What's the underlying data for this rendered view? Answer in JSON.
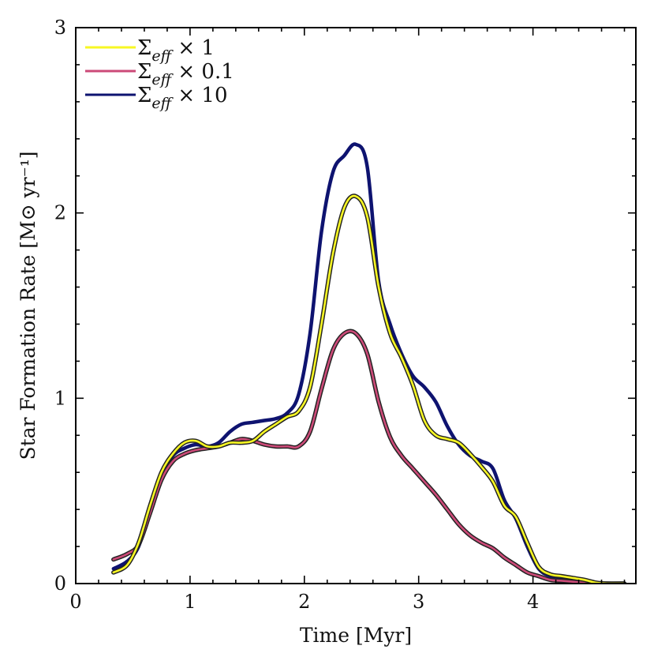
{
  "chart_data": {
    "type": "line",
    "title": "",
    "xlabel": "Time [Myr]",
    "ylabel": "Star Formation Rate [M⊙ yr⁻¹]",
    "xlim": [
      0,
      4.9
    ],
    "ylim": [
      0,
      3
    ],
    "xticks": [
      0,
      1,
      2,
      3,
      4
    ],
    "yticks": [
      0,
      1,
      2,
      3
    ],
    "xtick_labels": [
      "0",
      "1",
      "2",
      "3",
      "4"
    ],
    "ytick_labels": [
      "0",
      "1",
      "2",
      "3"
    ],
    "legend_position": "top-left",
    "series": [
      {
        "name": "Σeff × 1",
        "legend_label": "Σ",
        "legend_sub": "eff",
        "legend_suffix": " × 1",
        "color": "#f7f723",
        "x": [
          0.33,
          0.45,
          0.55,
          0.65,
          0.75,
          0.85,
          0.95,
          1.05,
          1.15,
          1.25,
          1.35,
          1.45,
          1.55,
          1.65,
          1.75,
          1.85,
          1.95,
          2.05,
          2.15,
          2.25,
          2.35,
          2.45,
          2.55,
          2.65,
          2.75,
          2.85,
          2.95,
          3.05,
          3.15,
          3.25,
          3.35,
          3.45,
          3.55,
          3.65,
          3.75,
          3.85,
          3.95,
          4.05,
          4.15,
          4.25,
          4.35,
          4.45,
          4.55,
          4.65,
          4.8
        ],
        "y": [
          0.06,
          0.1,
          0.22,
          0.42,
          0.6,
          0.7,
          0.76,
          0.77,
          0.74,
          0.74,
          0.76,
          0.76,
          0.77,
          0.82,
          0.86,
          0.9,
          0.93,
          1.06,
          1.4,
          1.78,
          2.03,
          2.09,
          1.98,
          1.6,
          1.35,
          1.22,
          1.07,
          0.88,
          0.8,
          0.78,
          0.76,
          0.7,
          0.63,
          0.55,
          0.42,
          0.36,
          0.22,
          0.09,
          0.05,
          0.04,
          0.03,
          0.02,
          0.005,
          0.0,
          0.0
        ]
      },
      {
        "name": "Σeff × 0.1",
        "legend_label": "Σ",
        "legend_sub": "eff",
        "legend_suffix": " × 0.1",
        "color": "#cc4a78",
        "x": [
          0.33,
          0.45,
          0.55,
          0.65,
          0.75,
          0.85,
          0.95,
          1.05,
          1.15,
          1.25,
          1.35,
          1.45,
          1.55,
          1.65,
          1.75,
          1.85,
          1.95,
          2.05,
          2.15,
          2.25,
          2.35,
          2.45,
          2.55,
          2.65,
          2.75,
          2.85,
          2.95,
          3.05,
          3.15,
          3.25,
          3.35,
          3.45,
          3.55,
          3.65,
          3.75,
          3.85,
          3.95,
          4.05,
          4.15,
          4.25,
          4.35,
          4.45,
          4.55,
          4.65,
          4.8
        ],
        "y": [
          0.13,
          0.16,
          0.21,
          0.38,
          0.56,
          0.66,
          0.7,
          0.72,
          0.73,
          0.74,
          0.76,
          0.78,
          0.77,
          0.75,
          0.74,
          0.74,
          0.74,
          0.82,
          1.05,
          1.26,
          1.35,
          1.35,
          1.24,
          0.98,
          0.79,
          0.69,
          0.62,
          0.55,
          0.48,
          0.4,
          0.32,
          0.26,
          0.22,
          0.19,
          0.14,
          0.1,
          0.06,
          0.04,
          0.02,
          0.015,
          0.01,
          0.005,
          0.0,
          0.0,
          0.0
        ]
      },
      {
        "name": "Σeff × 10",
        "legend_label": "Σ",
        "legend_sub": "eff",
        "legend_suffix": " × 10",
        "color": "#0e1370",
        "x": [
          0.33,
          0.45,
          0.55,
          0.65,
          0.75,
          0.85,
          0.95,
          1.05,
          1.15,
          1.25,
          1.35,
          1.45,
          1.55,
          1.65,
          1.75,
          1.85,
          1.95,
          2.05,
          2.15,
          2.25,
          2.35,
          2.45,
          2.55,
          2.65,
          2.75,
          2.85,
          2.95,
          3.05,
          3.15,
          3.25,
          3.35,
          3.45,
          3.55,
          3.65,
          3.75,
          3.85,
          3.95,
          4.05,
          4.15,
          4.25,
          4.35,
          4.45,
          4.55,
          4.65,
          4.8
        ],
        "y": [
          0.08,
          0.12,
          0.2,
          0.4,
          0.58,
          0.69,
          0.73,
          0.75,
          0.74,
          0.76,
          0.82,
          0.86,
          0.87,
          0.88,
          0.89,
          0.92,
          1.02,
          1.35,
          1.9,
          2.22,
          2.31,
          2.37,
          2.25,
          1.63,
          1.4,
          1.24,
          1.12,
          1.06,
          0.98,
          0.85,
          0.75,
          0.69,
          0.66,
          0.62,
          0.45,
          0.35,
          0.2,
          0.08,
          0.04,
          0.025,
          0.02,
          0.01,
          0.005,
          0.0,
          0.0
        ]
      }
    ]
  }
}
